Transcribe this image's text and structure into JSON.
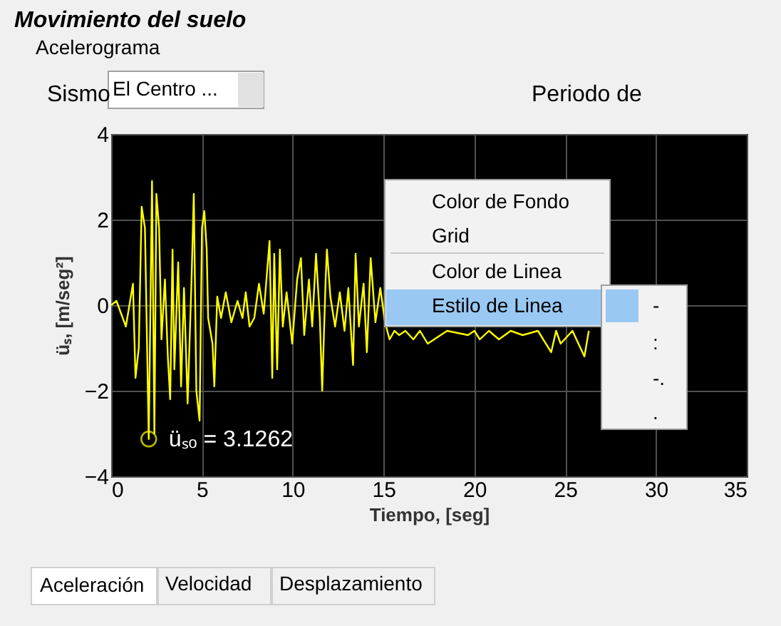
{
  "chart_data": {
    "type": "line",
    "title": "Movimiento del suelo",
    "subtitle": "Acelerograma",
    "xlabel": "Tiempo, [seg]",
    "ylabel": "üₛ, [m/seg²]",
    "x": [
      0,
      0.29,
      0.81,
      1.2,
      1.34,
      1.52,
      1.68,
      1.86,
      2.07,
      2.25,
      2.38,
      2.49,
      2.64,
      2.77,
      2.96,
      3.12,
      3.25,
      3.38,
      3.48,
      3.69,
      3.85,
      4.01,
      4.21,
      4.42,
      4.55,
      4.69,
      4.87,
      5.0,
      5.13,
      5.26,
      5.34,
      5.58,
      5.68,
      5.84,
      6.05,
      6.31,
      6.62,
      6.96,
      7.23,
      7.41,
      7.62,
      7.88,
      8.14,
      8.4,
      8.72,
      8.87,
      8.98,
      9.14,
      9.29,
      9.45,
      9.66,
      9.97,
      10.24,
      10.45,
      10.63,
      10.89,
      11.07,
      11.28,
      11.49,
      11.62,
      11.81,
      11.88,
      12.07,
      12.33,
      12.59,
      12.85,
      13.06,
      13.32,
      13.46,
      13.64,
      13.9,
      14.08,
      14.29,
      14.55,
      14.82,
      15.08,
      15.33,
      15.6,
      15.86,
      16.2,
      16.64,
      17.0,
      17.43,
      18.5,
      19.65,
      20.0,
      20.3,
      20.8,
      21.35,
      22.0,
      22.66,
      23.5,
      24.23,
      24.5,
      24.75,
      25.4,
      26.06,
      26.3
    ],
    "series": [
      {
        "color": "#ffff00",
        "values": [
          0,
          0.1,
          -0.5,
          0.5,
          -1.7,
          -1.0,
          2.3,
          1.8,
          -3.13,
          2.9,
          -3.0,
          2.6,
          1.8,
          -0.8,
          0.6,
          -1.2,
          -2.2,
          1.3,
          -1.5,
          1.0,
          -1.9,
          0.4,
          -2.3,
          0.5,
          2.6,
          -2.0,
          -2.7,
          1.8,
          2.2,
          1.3,
          -0.3,
          -0.9,
          -1.9,
          0.2,
          -0.3,
          0.3,
          -0.4,
          0.1,
          -0.3,
          0.3,
          -0.5,
          -0.3,
          0.5,
          -0.2,
          1.5,
          -1.7,
          1.2,
          -1.5,
          1.3,
          -0.5,
          0.3,
          -0.9,
          0.6,
          1.1,
          -0.7,
          0.6,
          -0.5,
          1.2,
          -0.3,
          -2.0,
          0.6,
          1.3,
          0.2,
          -0.5,
          0.3,
          -0.6,
          0.4,
          -1.4,
          1.2,
          -0.5,
          0.5,
          -1.1,
          1.1,
          -0.4,
          0.4,
          -0.4,
          -0.8,
          -0.6,
          -0.7,
          -0.6,
          -0.8,
          -0.6,
          -0.9,
          -0.6,
          -0.7,
          -0.6,
          -0.8,
          -0.6,
          -0.8,
          -0.6,
          -0.7,
          -0.6,
          -1.1,
          -0.6,
          -0.9,
          -0.6,
          -1.2,
          -0.6
        ]
      }
    ],
    "xlim": [
      0,
      35
    ],
    "ylim": [
      -4,
      4
    ],
    "xticks": [
      0,
      5,
      10,
      15,
      20,
      25,
      30,
      35
    ],
    "yticks": [
      -4,
      -2,
      0,
      2,
      4
    ],
    "grid": true,
    "annotations": [
      "Sismo",
      "El Centro  ...",
      "Periodo de",
      "Color de Fondo",
      "Grid",
      "Color de Linea",
      "Estilo de Linea",
      "-",
      ":",
      "-.",
      ".",
      "Aceleración",
      "Velocidad",
      "Desplazamiento",
      {
        "text": "üₛₒ = 3.1262",
        "x": 2.07,
        "y": -3.13
      }
    ]
  }
}
